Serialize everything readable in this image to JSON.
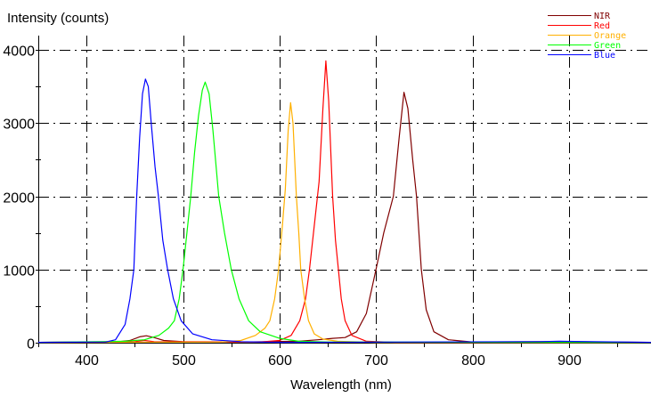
{
  "chart_data": {
    "type": "line",
    "title": "",
    "xlabel": "Wavelength (nm)",
    "ylabel": "Intensity (counts)",
    "xlim": [
      350,
      985
    ],
    "ylim": [
      0,
      4195
    ],
    "xticks": [
      400,
      500,
      600,
      700,
      800,
      900
    ],
    "yticks": [
      0,
      1000,
      2000,
      3000,
      4000
    ],
    "grid": true,
    "legend_position": "top-right",
    "series": [
      {
        "name": "NIR",
        "color": "#800000",
        "points": [
          [
            350,
            5
          ],
          [
            430,
            10
          ],
          [
            445,
            30
          ],
          [
            455,
            80
          ],
          [
            462,
            95
          ],
          [
            470,
            70
          ],
          [
            480,
            30
          ],
          [
            500,
            15
          ],
          [
            560,
            10
          ],
          [
            620,
            20
          ],
          [
            640,
            40
          ],
          [
            655,
            60
          ],
          [
            668,
            70
          ],
          [
            680,
            150
          ],
          [
            690,
            400
          ],
          [
            700,
            1000
          ],
          [
            708,
            1500
          ],
          [
            718,
            2000
          ],
          [
            724,
            2800
          ],
          [
            729,
            3420
          ],
          [
            733,
            3200
          ],
          [
            738,
            2500
          ],
          [
            742,
            2000
          ],
          [
            747,
            1000
          ],
          [
            752,
            450
          ],
          [
            760,
            150
          ],
          [
            775,
            40
          ],
          [
            800,
            10
          ],
          [
            870,
            15
          ],
          [
            890,
            15
          ],
          [
            985,
            5
          ]
        ]
      },
      {
        "name": "Red",
        "color": "#ff0000",
        "points": [
          [
            350,
            5
          ],
          [
            450,
            15
          ],
          [
            460,
            30
          ],
          [
            470,
            15
          ],
          [
            580,
            10
          ],
          [
            600,
            30
          ],
          [
            612,
            100
          ],
          [
            621,
            300
          ],
          [
            627,
            600
          ],
          [
            631,
            1000
          ],
          [
            636,
            1600
          ],
          [
            641,
            2200
          ],
          [
            645,
            3200
          ],
          [
            648,
            3850
          ],
          [
            651,
            3300
          ],
          [
            655,
            2000
          ],
          [
            658,
            1400
          ],
          [
            661,
            1000
          ],
          [
            664,
            600
          ],
          [
            668,
            300
          ],
          [
            675,
            100
          ],
          [
            690,
            20
          ],
          [
            720,
            5
          ],
          [
            985,
            5
          ]
        ]
      },
      {
        "name": "Orange",
        "color": "#ffb000",
        "points": [
          [
            350,
            3
          ],
          [
            540,
            10
          ],
          [
            560,
            30
          ],
          [
            575,
            100
          ],
          [
            585,
            200
          ],
          [
            590,
            300
          ],
          [
            595,
            600
          ],
          [
            599,
            1000
          ],
          [
            603,
            1600
          ],
          [
            606,
            2100
          ],
          [
            609,
            2900
          ],
          [
            611.5,
            3280
          ],
          [
            614,
            3000
          ],
          [
            617.5,
            2000
          ],
          [
            620,
            1500
          ],
          [
            622,
            1000
          ],
          [
            626,
            600
          ],
          [
            630,
            300
          ],
          [
            636,
            120
          ],
          [
            645,
            50
          ],
          [
            660,
            20
          ],
          [
            700,
            5
          ],
          [
            985,
            3
          ]
        ]
      },
      {
        "name": "Green",
        "color": "#00ff00",
        "points": [
          [
            350,
            5
          ],
          [
            440,
            20
          ],
          [
            460,
            40
          ],
          [
            475,
            100
          ],
          [
            485,
            200
          ],
          [
            491,
            300
          ],
          [
            496,
            600
          ],
          [
            500,
            1000
          ],
          [
            504,
            1500
          ],
          [
            508,
            2000
          ],
          [
            512,
            2600
          ],
          [
            516,
            3100
          ],
          [
            520,
            3450
          ],
          [
            523,
            3560
          ],
          [
            527,
            3400
          ],
          [
            531,
            2900
          ],
          [
            537,
            2000
          ],
          [
            543,
            1500
          ],
          [
            550,
            1000
          ],
          [
            558,
            600
          ],
          [
            568,
            300
          ],
          [
            580,
            150
          ],
          [
            600,
            60
          ],
          [
            620,
            20
          ],
          [
            650,
            10
          ],
          [
            985,
            5
          ]
        ]
      },
      {
        "name": "Blue",
        "color": "#0000ff",
        "points": [
          [
            350,
            5
          ],
          [
            420,
            10
          ],
          [
            430,
            40
          ],
          [
            440,
            250
          ],
          [
            445,
            600
          ],
          [
            449,
            1000
          ],
          [
            452,
            2000
          ],
          [
            455,
            2800
          ],
          [
            458,
            3400
          ],
          [
            461,
            3600
          ],
          [
            464,
            3500
          ],
          [
            467,
            3000
          ],
          [
            471,
            2400
          ],
          [
            474.5,
            2000
          ],
          [
            479,
            1400
          ],
          [
            484,
            1000
          ],
          [
            490,
            600
          ],
          [
            498,
            300
          ],
          [
            510,
            120
          ],
          [
            530,
            40
          ],
          [
            560,
            15
          ],
          [
            600,
            5
          ],
          [
            870,
            15
          ],
          [
            890,
            20
          ],
          [
            985,
            5
          ]
        ]
      }
    ]
  }
}
